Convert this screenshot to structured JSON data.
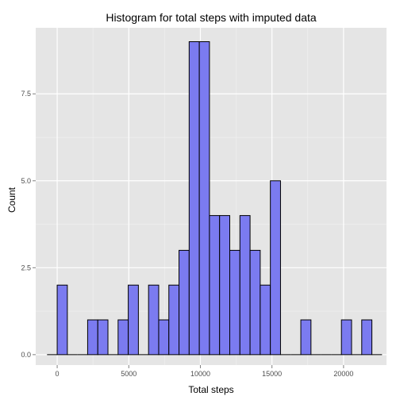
{
  "chart_data": {
    "type": "bar",
    "title": "Histogram for total steps with imputed data",
    "xlabel": "Total steps",
    "ylabel": "Count",
    "xlim": [
      -1500,
      23000
    ],
    "ylim": [
      -0.3,
      9.4
    ],
    "x_ticks": [
      0,
      5000,
      10000,
      15000,
      20000
    ],
    "x_tick_labels": [
      "0",
      "5000",
      "10000",
      "15000",
      "20000"
    ],
    "y_ticks": [
      0,
      2.5,
      5,
      7.5
    ],
    "y_tick_labels": [
      "0.0",
      "2.5",
      "5.0",
      "7.5"
    ],
    "grid": true,
    "bin_width": 709,
    "bin_centers": [
      -354,
      354,
      1063,
      1772,
      2481,
      3190,
      3899,
      4608,
      5317,
      6026,
      6735,
      7444,
      8153,
      8862,
      9571,
      10280,
      10989,
      11698,
      12407,
      13116,
      13825,
      14534,
      15243,
      15952,
      16661,
      17370,
      18079,
      18788,
      19497,
      20206,
      20915,
      21624,
      22333
    ],
    "values": [
      0,
      2,
      0,
      0,
      1,
      1,
      0,
      1,
      2,
      0,
      2,
      1,
      2,
      3,
      9,
      9,
      4,
      4,
      3,
      4,
      3,
      2,
      5,
      0,
      0,
      1,
      0,
      0,
      0,
      1,
      0,
      1,
      0
    ],
    "colors": {
      "panel": "#e5e5e5",
      "grid_major": "#ffffff",
      "grid_minor": "#f2f2f2",
      "bar_fill": "#7b7bf0",
      "bar_stroke": "#000000"
    }
  }
}
